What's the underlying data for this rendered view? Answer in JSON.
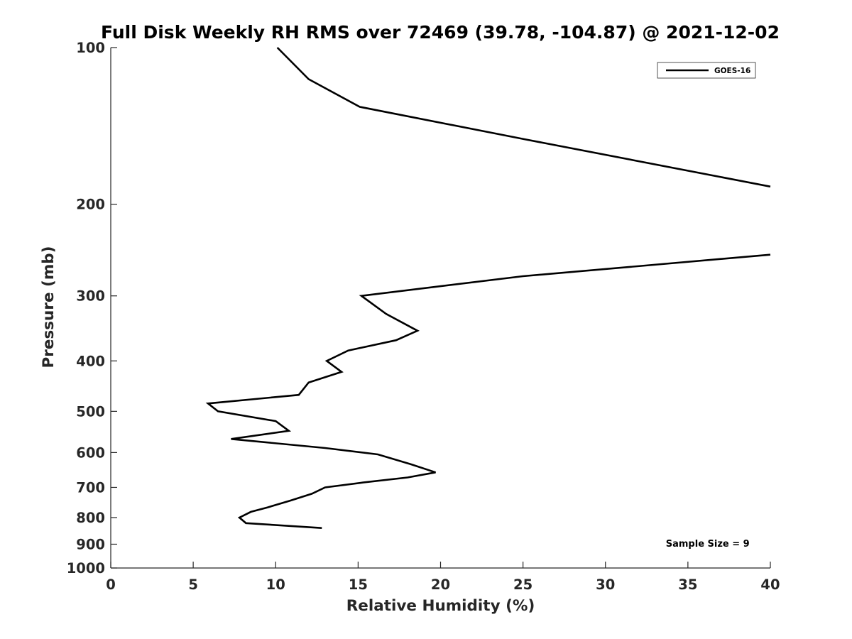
{
  "chart_data": {
    "type": "line",
    "title": "Full Disk Weekly RH RMS over 72469 (39.78, -104.87) @ 2021-12-02",
    "xlabel": "Relative Humidity (%)",
    "ylabel": "Pressure (mb)",
    "xlim": [
      0,
      40
    ],
    "ylim": [
      1000,
      100
    ],
    "yscale": "log",
    "y_reversed": true,
    "grid": false,
    "legend_position": "top-right",
    "x_ticks": [
      0,
      5,
      10,
      15,
      20,
      25,
      30,
      35,
      40
    ],
    "x_tick_labels": [
      "0",
      "5",
      "10",
      "15",
      "20",
      "25",
      "30",
      "35",
      "40"
    ],
    "y_ticks": [
      100,
      200,
      300,
      400,
      500,
      600,
      700,
      800,
      900,
      1000
    ],
    "y_tick_labels": [
      "100",
      "200",
      "300",
      "400",
      "500",
      "600",
      "700",
      "800",
      "900",
      "1000"
    ],
    "series": [
      {
        "name": "GOES-16",
        "color": "#000000",
        "segments": [
          [
            {
              "x": 10.1,
              "y": 100
            },
            {
              "x": 12.0,
              "y": 115
            },
            {
              "x": 15.1,
              "y": 130
            },
            {
              "x": 25.1,
              "y": 150
            },
            {
              "x": 40.0,
              "y": 185
            }
          ],
          [
            {
              "x": 40.0,
              "y": 250
            },
            {
              "x": 25.0,
              "y": 275
            },
            {
              "x": 15.2,
              "y": 300
            },
            {
              "x": 16.7,
              "y": 325
            },
            {
              "x": 18.6,
              "y": 350
            },
            {
              "x": 17.3,
              "y": 365
            },
            {
              "x": 14.4,
              "y": 382
            },
            {
              "x": 13.1,
              "y": 400
            },
            {
              "x": 14.0,
              "y": 420
            },
            {
              "x": 12.0,
              "y": 440
            },
            {
              "x": 11.4,
              "y": 465
            },
            {
              "x": 5.9,
              "y": 483
            },
            {
              "x": 6.5,
              "y": 500
            },
            {
              "x": 10.0,
              "y": 522
            },
            {
              "x": 10.8,
              "y": 545
            },
            {
              "x": 7.3,
              "y": 565
            },
            {
              "x": 13.0,
              "y": 588
            },
            {
              "x": 16.2,
              "y": 605
            },
            {
              "x": 18.2,
              "y": 632
            },
            {
              "x": 19.7,
              "y": 655
            },
            {
              "x": 18.0,
              "y": 670
            },
            {
              "x": 15.3,
              "y": 685
            },
            {
              "x": 13.0,
              "y": 700
            },
            {
              "x": 12.2,
              "y": 720
            },
            {
              "x": 10.9,
              "y": 742
            },
            {
              "x": 9.5,
              "y": 765
            },
            {
              "x": 8.5,
              "y": 780
            },
            {
              "x": 7.8,
              "y": 800
            },
            {
              "x": 8.2,
              "y": 820
            },
            {
              "x": 12.8,
              "y": 838
            }
          ]
        ]
      }
    ],
    "legend": [
      {
        "name": "GOES-16",
        "color": "#000000"
      }
    ],
    "annotations": [
      {
        "text": "Sample Size = 9",
        "x": 36.2,
        "y": 910
      }
    ]
  }
}
